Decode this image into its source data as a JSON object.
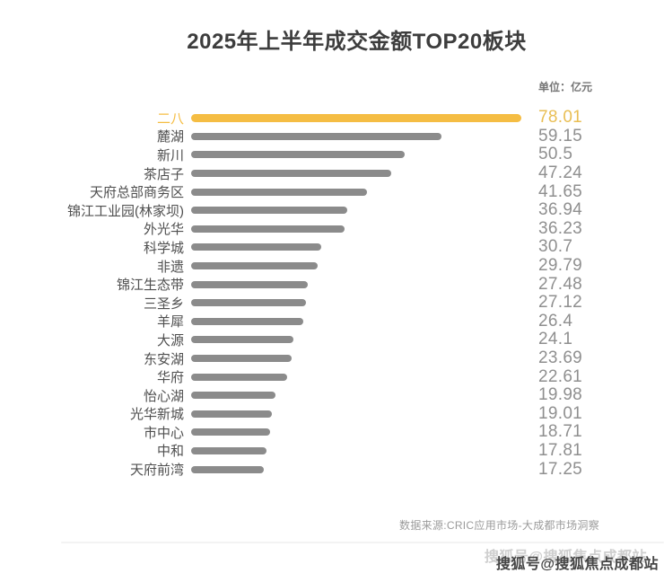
{
  "page": {
    "title": "2025年上半年成交金额TOP20板块",
    "unit_label": "单位：亿元",
    "source": "数据来源:CRIC应用市场-大成都市场洞察",
    "watermark": "搜狐号@搜狐焦点成都站"
  },
  "colors": {
    "highlight_bar": "#f5bd43",
    "highlight_text": "#e9be53",
    "bar": "#8b8b8b",
    "label_text": "#4f4f4f",
    "value_text": "#8f8f8f"
  },
  "chart_data": {
    "type": "bar",
    "orientation": "horizontal",
    "title": "2025年上半年成交金额TOP20板块",
    "unit": "亿元",
    "xlim": [
      0,
      78.01
    ],
    "grid": false,
    "legend": false,
    "highlight_index": 0,
    "categories": [
      "二八",
      "麓湖",
      "新川",
      "茶店子",
      "天府总部商务区",
      "锦江工业园(林家坝)",
      "外光华",
      "科学城",
      "非遗",
      "锦江生态带",
      "三圣乡",
      "羊犀",
      "大源",
      "东安湖",
      "华府",
      "怡心湖",
      "光华新城",
      "市中心",
      "中和",
      "天府前湾"
    ],
    "values": [
      78.01,
      59.15,
      50.5,
      47.24,
      41.65,
      36.94,
      36.23,
      30.7,
      29.79,
      27.48,
      27.12,
      26.4,
      24.1,
      23.69,
      22.61,
      19.98,
      19.01,
      18.71,
      17.81,
      17.25
    ]
  }
}
